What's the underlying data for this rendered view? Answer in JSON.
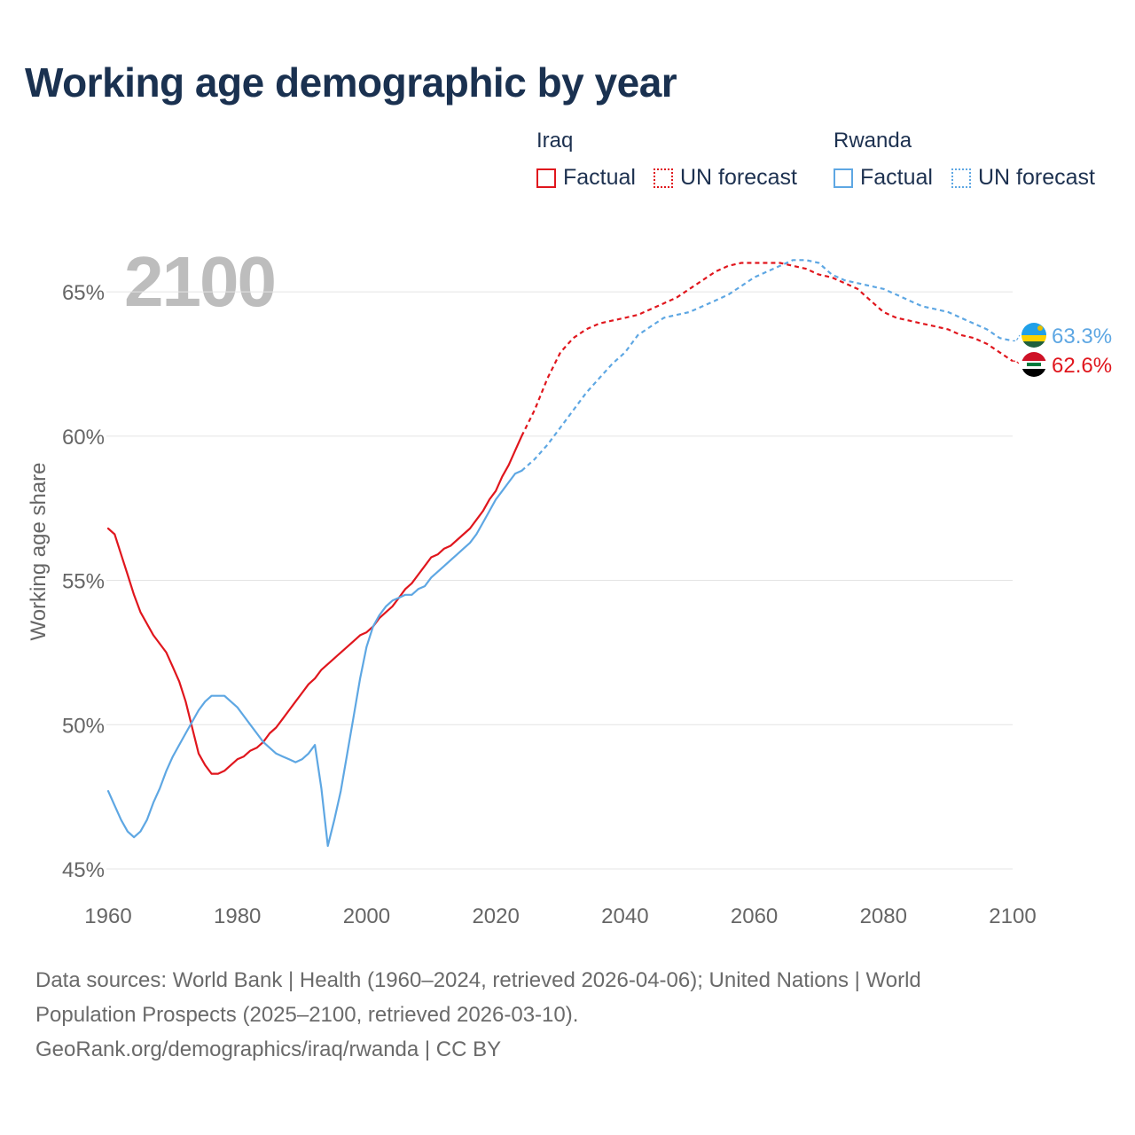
{
  "title": "Working age demographic by year",
  "year_watermark": "2100",
  "legend": {
    "groups": [
      {
        "name": "Iraq",
        "factual": "Factual",
        "forecast": "UN forecast"
      },
      {
        "name": "Rwanda",
        "factual": "Factual",
        "forecast": "UN forecast"
      }
    ]
  },
  "sources": {
    "line1": "Data sources: World Bank | Health (1960–2024, retrieved 2026-04-06); United Nations | World",
    "line2": "Population Prospects (2025–2100, retrieved 2026-03-10).",
    "line3": "GeoRank.org/demographics/iraq/rwanda | CC BY"
  },
  "colors": {
    "iraq": "#e0161d",
    "rwanda": "#5ea7e3",
    "grid": "#e4e4e4",
    "axis_text": "#666666"
  },
  "chart_data": {
    "type": "line",
    "title": "Working age demographic by year",
    "xlabel": "",
    "ylabel": "Working age share",
    "xlim": [
      1960,
      2100
    ],
    "ylim": [
      45,
      67
    ],
    "x_ticks": [
      1960,
      1980,
      2000,
      2020,
      2040,
      2060,
      2080,
      2100
    ],
    "x_tick_labels": [
      "1960",
      "1980",
      "2000",
      "2020",
      "2040",
      "2060",
      "2080",
      "2100"
    ],
    "y_ticks": [
      45,
      50,
      55,
      60,
      65
    ],
    "y_tick_labels": [
      "45%",
      "50%",
      "55%",
      "60%",
      "65%"
    ],
    "grid": true,
    "series": [
      {
        "name": "Iraq",
        "color": "#e0161d",
        "end_label": "62.6%",
        "factual": {
          "x": [
            1960,
            1961,
            1962,
            1963,
            1964,
            1965,
            1966,
            1967,
            1968,
            1969,
            1970,
            1971,
            1972,
            1973,
            1974,
            1975,
            1976,
            1977,
            1978,
            1979,
            1980,
            1981,
            1982,
            1983,
            1984,
            1985,
            1986,
            1987,
            1988,
            1989,
            1990,
            1991,
            1992,
            1993,
            1994,
            1995,
            1996,
            1997,
            1998,
            1999,
            2000,
            2001,
            2002,
            2003,
            2004,
            2005,
            2006,
            2007,
            2008,
            2009,
            2010,
            2011,
            2012,
            2013,
            2014,
            2015,
            2016,
            2017,
            2018,
            2019,
            2020,
            2021,
            2022,
            2023,
            2024
          ],
          "y": [
            56.8,
            56.6,
            55.9,
            55.2,
            54.5,
            53.9,
            53.5,
            53.1,
            52.8,
            52.5,
            52.0,
            51.5,
            50.8,
            49.9,
            49.0,
            48.6,
            48.3,
            48.3,
            48.4,
            48.6,
            48.8,
            48.9,
            49.1,
            49.2,
            49.4,
            49.7,
            49.9,
            50.2,
            50.5,
            50.8,
            51.1,
            51.4,
            51.6,
            51.9,
            52.1,
            52.3,
            52.5,
            52.7,
            52.9,
            53.1,
            53.2,
            53.4,
            53.7,
            53.9,
            54.1,
            54.4,
            54.7,
            54.9,
            55.2,
            55.5,
            55.8,
            55.9,
            56.1,
            56.2,
            56.4,
            56.6,
            56.8,
            57.1,
            57.4,
            57.8,
            58.1,
            58.6,
            59.0,
            59.5,
            60.0
          ]
        },
        "forecast": {
          "x": [
            2024,
            2026,
            2028,
            2030,
            2032,
            2034,
            2036,
            2038,
            2040,
            2042,
            2044,
            2046,
            2048,
            2050,
            2052,
            2054,
            2056,
            2058,
            2060,
            2062,
            2064,
            2066,
            2068,
            2070,
            2072,
            2074,
            2076,
            2078,
            2080,
            2082,
            2084,
            2086,
            2088,
            2090,
            2092,
            2094,
            2096,
            2098,
            2100
          ],
          "y": [
            60.0,
            60.9,
            62.0,
            62.9,
            63.4,
            63.7,
            63.9,
            64.0,
            64.1,
            64.2,
            64.4,
            64.6,
            64.8,
            65.1,
            65.4,
            65.7,
            65.9,
            66.0,
            66.0,
            66.0,
            66.0,
            65.9,
            65.8,
            65.6,
            65.5,
            65.3,
            65.1,
            64.7,
            64.3,
            64.1,
            64.0,
            63.9,
            63.8,
            63.7,
            63.5,
            63.4,
            63.2,
            62.9,
            62.6
          ]
        }
      },
      {
        "name": "Rwanda",
        "color": "#5ea7e3",
        "end_label": "63.3%",
        "factual": {
          "x": [
            1960,
            1961,
            1962,
            1963,
            1964,
            1965,
            1966,
            1967,
            1968,
            1969,
            1970,
            1971,
            1972,
            1973,
            1974,
            1975,
            1976,
            1977,
            1978,
            1979,
            1980,
            1981,
            1982,
            1983,
            1984,
            1985,
            1986,
            1987,
            1988,
            1989,
            1990,
            1991,
            1992,
            1993,
            1994,
            1995,
            1996,
            1997,
            1998,
            1999,
            2000,
            2001,
            2002,
            2003,
            2004,
            2005,
            2006,
            2007,
            2008,
            2009,
            2010,
            2011,
            2012,
            2013,
            2014,
            2015,
            2016,
            2017,
            2018,
            2019,
            2020,
            2021,
            2022,
            2023,
            2024
          ],
          "y": [
            47.7,
            47.2,
            46.7,
            46.3,
            46.1,
            46.3,
            46.7,
            47.3,
            47.8,
            48.4,
            48.9,
            49.3,
            49.7,
            50.1,
            50.5,
            50.8,
            51.0,
            51.0,
            51.0,
            50.8,
            50.6,
            50.3,
            50.0,
            49.7,
            49.4,
            49.2,
            49.0,
            48.9,
            48.8,
            48.7,
            48.8,
            49.0,
            49.3,
            47.8,
            45.8,
            46.7,
            47.7,
            49.0,
            50.3,
            51.6,
            52.7,
            53.4,
            53.8,
            54.1,
            54.3,
            54.4,
            54.5,
            54.5,
            54.7,
            54.8,
            55.1,
            55.3,
            55.5,
            55.7,
            55.9,
            56.1,
            56.3,
            56.6,
            57.0,
            57.4,
            57.8,
            58.1,
            58.4,
            58.7,
            58.8
          ]
        },
        "forecast": {
          "x": [
            2024,
            2026,
            2028,
            2030,
            2032,
            2034,
            2036,
            2038,
            2040,
            2042,
            2044,
            2046,
            2048,
            2050,
            2052,
            2054,
            2056,
            2058,
            2060,
            2062,
            2064,
            2066,
            2068,
            2070,
            2072,
            2074,
            2076,
            2078,
            2080,
            2082,
            2084,
            2086,
            2088,
            2090,
            2092,
            2094,
            2096,
            2098,
            2100
          ],
          "y": [
            58.8,
            59.2,
            59.7,
            60.3,
            60.9,
            61.5,
            62.0,
            62.5,
            62.9,
            63.5,
            63.8,
            64.1,
            64.2,
            64.3,
            64.5,
            64.7,
            64.9,
            65.2,
            65.5,
            65.7,
            65.9,
            66.1,
            66.1,
            66.0,
            65.6,
            65.4,
            65.3,
            65.2,
            65.1,
            64.9,
            64.7,
            64.5,
            64.4,
            64.3,
            64.1,
            63.9,
            63.7,
            63.4,
            63.3
          ]
        }
      }
    ]
  }
}
